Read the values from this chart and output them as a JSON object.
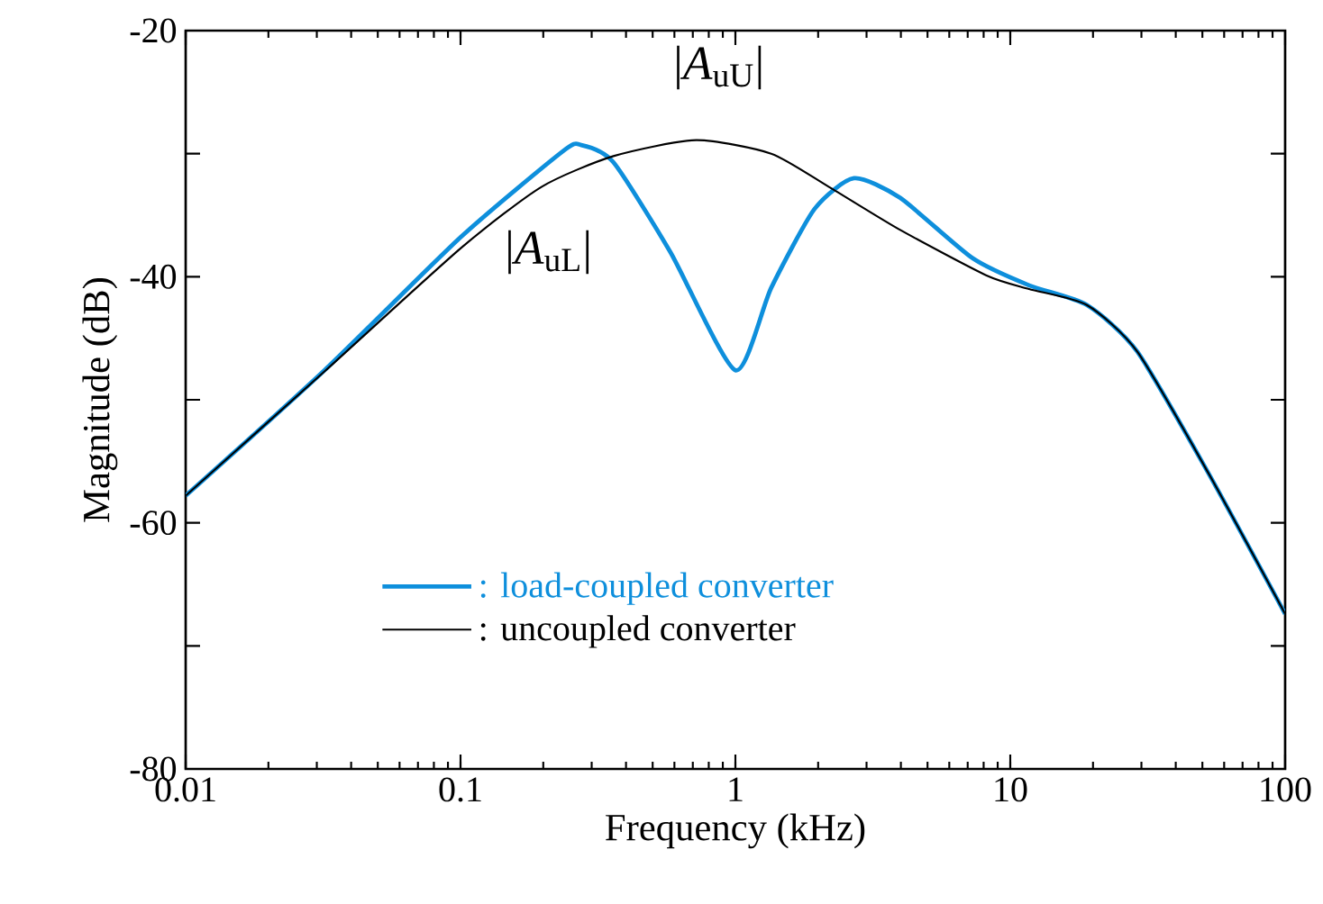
{
  "chart_data": {
    "type": "line",
    "xlabel": "Frequency (kHz)",
    "ylabel": "Magnitude (dB)",
    "log": "x",
    "xlim": [
      0.01,
      100
    ],
    "xticks": [
      0.01,
      0.1,
      1,
      10,
      100
    ],
    "ylim": [
      -80,
      -20
    ],
    "yticks": [
      -80,
      {
        "value": -70,
        "label": null
      },
      -60,
      {
        "value": -50,
        "label": null
      },
      -40,
      {
        "value": -30,
        "label": null
      },
      -20
    ],
    "grid": false,
    "legend": "bottom",
    "marker": "none",
    "line_style": "solid",
    "annotations": [
      "|*A*$_{uU}$|",
      "|*A*$_{uL}$|"
    ],
    "series": [
      {
        "name": ": load-coupled converter",
        "color": "#0e8fdc",
        "x": [
          0.01,
          0.032,
          0.1,
          0.236,
          0.275,
          0.36,
          0.58,
          1.0,
          1.35,
          1.94,
          2.7,
          3.98,
          7.3,
          11.7,
          19,
          29,
          53,
          100
        ],
        "values": [
          -57.8,
          -47.6,
          -36.8,
          -29.8,
          -29.3,
          -30.7,
          -38.0,
          -47.6,
          -40.9,
          -34.5,
          -32.0,
          -33.6,
          -38.5,
          -40.7,
          -42.3,
          -46.1,
          -56.1,
          -67.4
        ]
      },
      {
        "name": ": uncoupled converter",
        "color": "#000000",
        "x": [
          0.01,
          0.032,
          0.1,
          0.197,
          0.36,
          0.72,
          1.35,
          2.19,
          3.98,
          8.2,
          11.7,
          19,
          29,
          53,
          100
        ],
        "values": [
          -57.8,
          -47.7,
          -37.7,
          -32.7,
          -30.2,
          -28.9,
          -30.0,
          -32.7,
          -36.2,
          -39.9,
          -41.0,
          -42.3,
          -46.1,
          -56.1,
          -67.4
        ]
      }
    ]
  }
}
